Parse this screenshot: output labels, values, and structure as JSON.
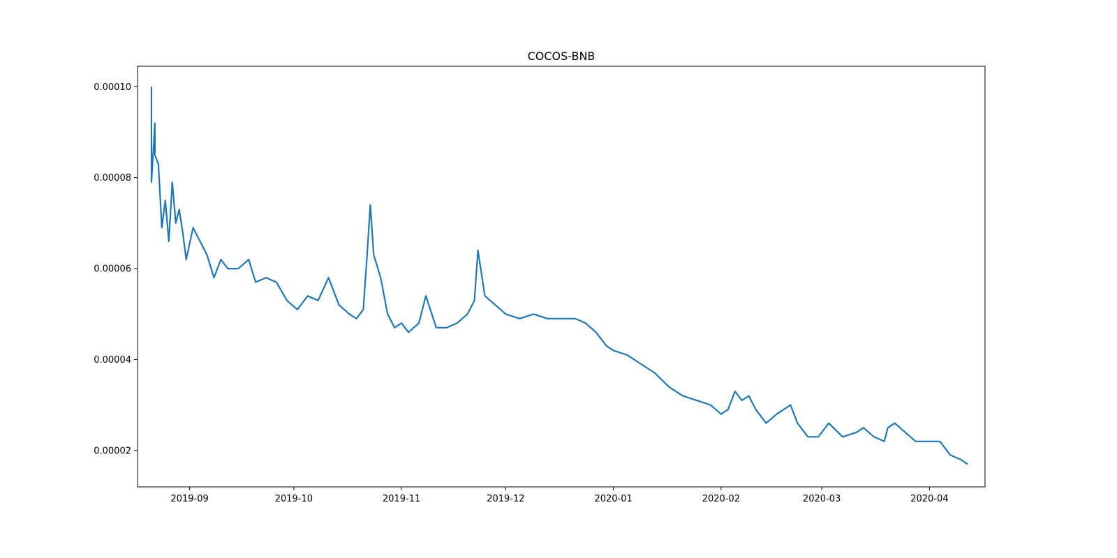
{
  "chart_data": {
    "type": "line",
    "title": "COCOS-BNB",
    "xlabel": "",
    "ylabel": "",
    "x_ticks": [
      "2019-09",
      "2019-10",
      "2019-11",
      "2019-12",
      "2020-01",
      "2020-02",
      "2020-03",
      "2020-04"
    ],
    "y_ticks": [
      "0.00002",
      "0.00004",
      "0.00006",
      "0.00008",
      "0.00010"
    ],
    "xlim": [
      "2019-08-17",
      "2020-04-17"
    ],
    "ylim": [
      1.2e-05,
      0.0001045
    ],
    "grid": false,
    "series": [
      {
        "color": "#1f77b4",
        "x": [
          "2019-08-21",
          "2019-08-21",
          "2019-08-22",
          "2019-08-22",
          "2019-08-23",
          "2019-08-24",
          "2019-08-25",
          "2019-08-26",
          "2019-08-27",
          "2019-08-28",
          "2019-08-29",
          "2019-08-30",
          "2019-08-31",
          "2019-09-02",
          "2019-09-04",
          "2019-09-06",
          "2019-09-08",
          "2019-09-10",
          "2019-09-12",
          "2019-09-15",
          "2019-09-18",
          "2019-09-20",
          "2019-09-23",
          "2019-09-26",
          "2019-09-29",
          "2019-10-02",
          "2019-10-05",
          "2019-10-08",
          "2019-10-11",
          "2019-10-14",
          "2019-10-17",
          "2019-10-19",
          "2019-10-21",
          "2019-10-22",
          "2019-10-23",
          "2019-10-24",
          "2019-10-26",
          "2019-10-28",
          "2019-10-30",
          "2019-11-01",
          "2019-11-03",
          "2019-11-06",
          "2019-11-08",
          "2019-11-11",
          "2019-11-14",
          "2019-11-17",
          "2019-11-20",
          "2019-11-22",
          "2019-11-23",
          "2019-11-25",
          "2019-11-28",
          "2019-12-01",
          "2019-12-05",
          "2019-12-09",
          "2019-12-13",
          "2019-12-17",
          "2019-12-21",
          "2019-12-24",
          "2019-12-27",
          "2019-12-30",
          "2020-01-01",
          "2020-01-05",
          "2020-01-09",
          "2020-01-13",
          "2020-01-17",
          "2020-01-21",
          "2020-01-25",
          "2020-01-29",
          "2020-02-01",
          "2020-02-03",
          "2020-02-05",
          "2020-02-07",
          "2020-02-09",
          "2020-02-11",
          "2020-02-14",
          "2020-02-17",
          "2020-02-19",
          "2020-02-21",
          "2020-02-23",
          "2020-02-26",
          "2020-02-29",
          "2020-03-03",
          "2020-03-07",
          "2020-03-11",
          "2020-03-13",
          "2020-03-16",
          "2020-03-19",
          "2020-03-20",
          "2020-03-22",
          "2020-03-25",
          "2020-03-28",
          "2020-04-01",
          "2020-04-04",
          "2020-04-07",
          "2020-04-10",
          "2020-04-12"
        ],
        "y": [
          0.0001,
          7.9e-05,
          9.2e-05,
          8.5e-05,
          8.3e-05,
          6.9e-05,
          7.5e-05,
          6.6e-05,
          7.9e-05,
          7e-05,
          7.3e-05,
          6.8e-05,
          6.2e-05,
          6.9e-05,
          6.6e-05,
          6.3e-05,
          5.8e-05,
          6.2e-05,
          6e-05,
          6e-05,
          6.2e-05,
          5.7e-05,
          5.8e-05,
          5.7e-05,
          5.3e-05,
          5.1e-05,
          5.4e-05,
          5.3e-05,
          5.8e-05,
          5.2e-05,
          5e-05,
          4.9e-05,
          5.1e-05,
          6.2e-05,
          7.4e-05,
          6.3e-05,
          5.8e-05,
          5e-05,
          4.7e-05,
          4.8e-05,
          4.6e-05,
          4.8e-05,
          5.4e-05,
          4.7e-05,
          4.7e-05,
          4.8e-05,
          5e-05,
          5.3e-05,
          6.4e-05,
          5.4e-05,
          5.2e-05,
          5e-05,
          4.9e-05,
          5e-05,
          4.9e-05,
          4.9e-05,
          4.9e-05,
          4.8e-05,
          4.6e-05,
          4.3e-05,
          4.2e-05,
          4.1e-05,
          3.9e-05,
          3.7e-05,
          3.4e-05,
          3.2e-05,
          3.1e-05,
          3e-05,
          2.8e-05,
          2.9e-05,
          3.3e-05,
          3.1e-05,
          3.2e-05,
          2.9e-05,
          2.6e-05,
          2.8e-05,
          2.9e-05,
          3e-05,
          2.6e-05,
          2.3e-05,
          2.3e-05,
          2.6e-05,
          2.3e-05,
          2.4e-05,
          2.5e-05,
          2.3e-05,
          2.2e-05,
          2.5e-05,
          2.6e-05,
          2.4e-05,
          2.2e-05,
          2.2e-05,
          2.2e-05,
          1.9e-05,
          1.8e-05,
          1.7e-05
        ]
      }
    ]
  }
}
